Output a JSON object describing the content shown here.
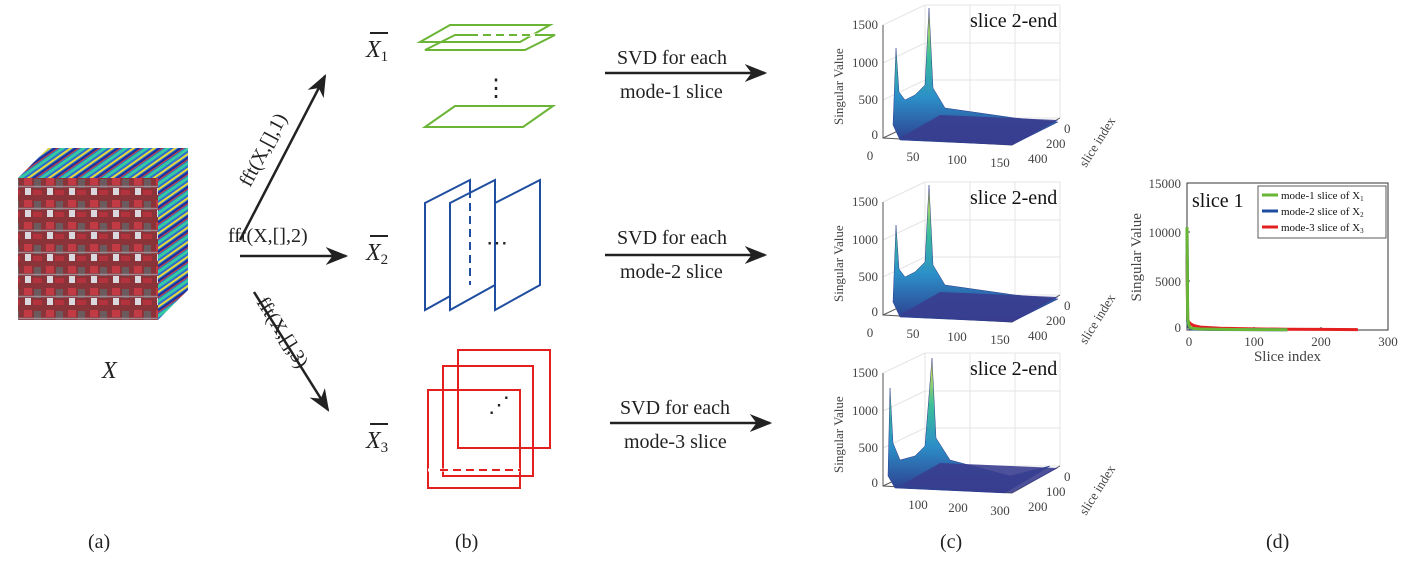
{
  "panel_labels": {
    "a": "(a)",
    "b": "(b)",
    "c": "(c)",
    "d": "(d)"
  },
  "tensor_symbol": "X",
  "fft": {
    "mode1": "fft(X,[],1)",
    "mode2": "fft(X,[],2)",
    "mode3": "fft(X,[],3)"
  },
  "transformed": [
    {
      "symbol": "X",
      "sub": "1",
      "color": "#6ab536"
    },
    {
      "symbol": "X",
      "sub": "2",
      "color": "#1f4ea0"
    },
    {
      "symbol": "X",
      "sub": "3",
      "color": "#e3201f"
    }
  ],
  "ellipsis": [
    "⋮",
    "⋯",
    "⋰"
  ],
  "svd": [
    {
      "line1": "SVD for each",
      "line2": "mode-1 slice"
    },
    {
      "line1": "SVD for each",
      "line2": "mode-2 slice"
    },
    {
      "line1": "SVD for each",
      "line2": "mode-3 slice"
    }
  ],
  "surface_plots": [
    {
      "title": "slice 2-end",
      "zlabel": "Singular Value",
      "ylabel": "slice index",
      "zticks": [
        "0",
        "500",
        "1000",
        "1500"
      ],
      "xticks": [
        "0",
        "50",
        "100",
        "150"
      ],
      "yticks": [
        "0",
        "200",
        "400"
      ]
    },
    {
      "title": "slice 2-end",
      "zlabel": "Singular Value",
      "ylabel": "slice index",
      "zticks": [
        "0",
        "500",
        "1000",
        "1500"
      ],
      "xticks": [
        "0",
        "50",
        "100",
        "150"
      ],
      "yticks": [
        "0",
        "200",
        "400"
      ]
    },
    {
      "title": "slice 2-end",
      "zlabel": "Singular Value",
      "ylabel": "slice index",
      "zticks": [
        "0",
        "500",
        "1000",
        "1500"
      ],
      "xticks": [
        "100",
        "200",
        "300"
      ],
      "yticks": [
        "0",
        "100",
        "200"
      ]
    }
  ],
  "chart_data": {
    "type": "line",
    "annotation": "slice 1",
    "xlabel": "Slice index",
    "ylabel": "Singular Value",
    "xlim": [
      0,
      300
    ],
    "ylim": [
      0,
      15000
    ],
    "xticks": [
      0,
      100,
      200,
      300
    ],
    "yticks": [
      0,
      5000,
      10000,
      15000
    ],
    "legend_position": "top-right",
    "series": [
      {
        "name": "mode-1 slice of X",
        "sub": "1",
        "color": "#6ab536",
        "x": [
          0,
          1,
          3,
          5,
          10,
          20,
          50,
          100,
          150
        ],
        "y": [
          10500,
          1200,
          450,
          250,
          150,
          100,
          60,
          40,
          30
        ]
      },
      {
        "name": "mode-2 slice of X",
        "sub": "2",
        "color": "#1f4ea0",
        "x": [
          0,
          1,
          3,
          5,
          10,
          20,
          50,
          100,
          150
        ],
        "y": [
          10300,
          900,
          300,
          150,
          100,
          80,
          50,
          35,
          25
        ]
      },
      {
        "name": "mode-3 slice of X",
        "sub": "3",
        "color": "#e3201f",
        "x": [
          0,
          1,
          3,
          5,
          10,
          20,
          50,
          100,
          150,
          200,
          255
        ],
        "y": [
          7700,
          1000,
          800,
          650,
          450,
          300,
          180,
          110,
          80,
          60,
          40
        ]
      }
    ]
  }
}
